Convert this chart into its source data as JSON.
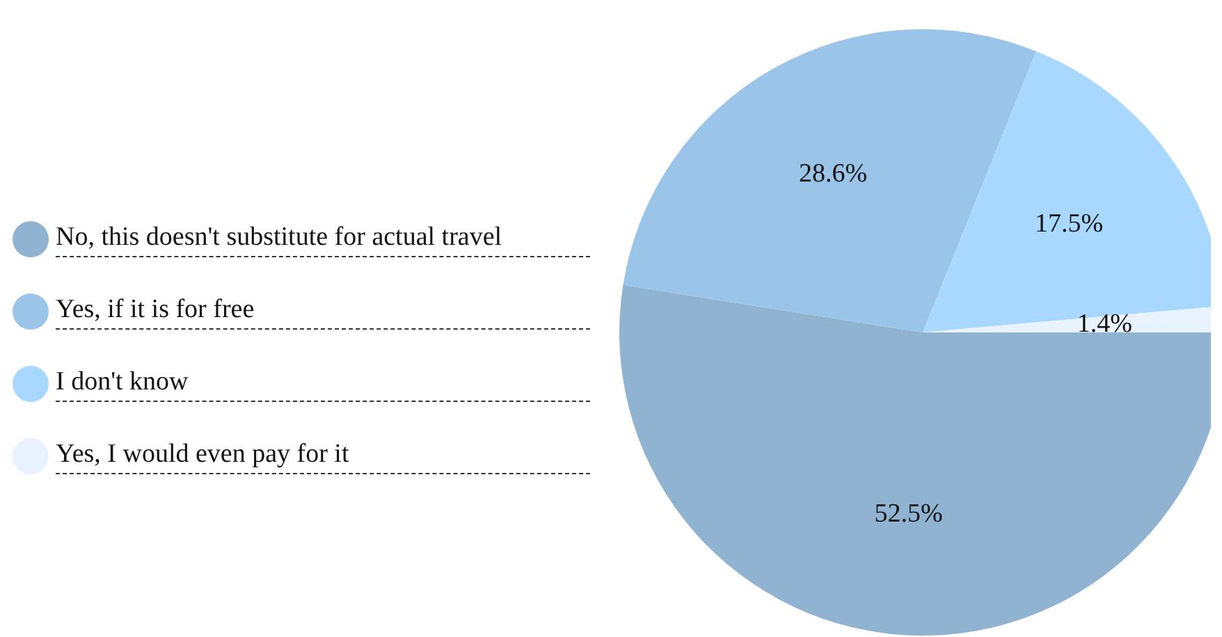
{
  "chart_data": {
    "type": "pie",
    "categories": [
      "No, this doesn't substitute for actual travel",
      "Yes, if it is for free",
      "I don't know",
      "Yes, I would even pay for it"
    ],
    "values": [
      52.5,
      28.6,
      17.5,
      1.4
    ],
    "colors": [
      "#8fb3d1",
      "#9bc5e8",
      "#a8d8ff",
      "#e8f3ff"
    ],
    "value_labels": [
      "52.5%",
      "28.6%",
      "17.5%",
      "1.4%"
    ],
    "legend": "left"
  }
}
